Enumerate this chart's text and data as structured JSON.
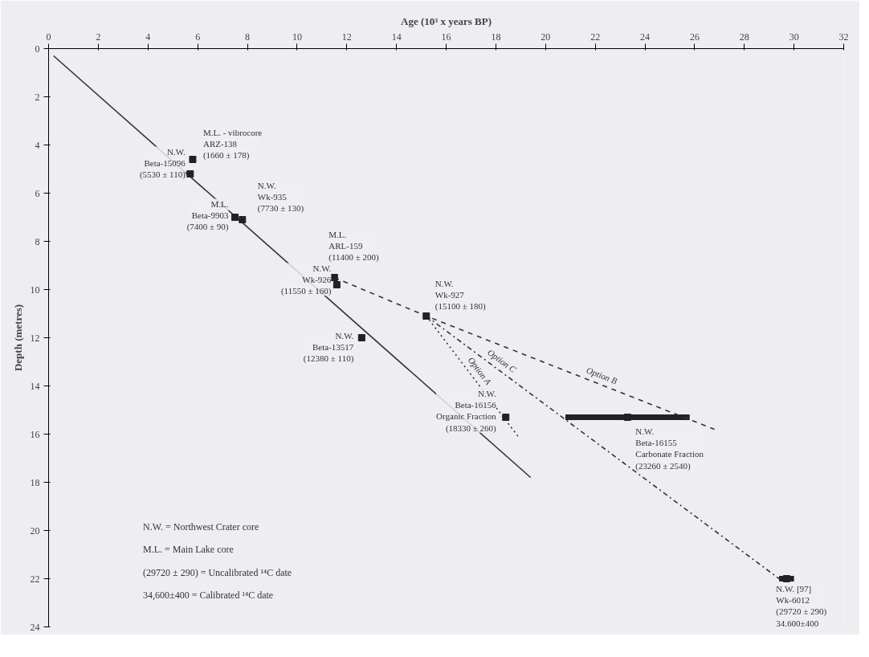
{
  "chart_data": {
    "type": "scatter",
    "xlabel": "Age (10³ x years BP)",
    "ylabel": "Depth (metres)",
    "xlim": [
      0,
      32
    ],
    "xticks": [
      0,
      2,
      4,
      6,
      8,
      10,
      12,
      14,
      16,
      18,
      20,
      22,
      24,
      26,
      28,
      30,
      32
    ],
    "ylim": [
      24,
      0
    ],
    "yticks": [
      0,
      2,
      4,
      6,
      8,
      10,
      12,
      14,
      16,
      18,
      20,
      22,
      24
    ],
    "series": [
      {
        "type": "line",
        "line_style": "solid",
        "color": "#333333",
        "x": [
          0.2,
          19.4
        ],
        "values": [
          0.3,
          17.8
        ]
      },
      {
        "name": "Option A",
        "type": "line",
        "line_style": "dotted",
        "color": "#333333",
        "x": [
          15.2,
          18.9
        ],
        "values": [
          11.1,
          16.1
        ]
      },
      {
        "name": "Option B",
        "type": "line",
        "line_style": "dashed",
        "color": "#333333",
        "x": [
          11.5,
          15.2,
          26.8
        ],
        "values": [
          9.5,
          11.1,
          15.8
        ]
      },
      {
        "name": "Option C",
        "type": "line",
        "line_style": "dashdot",
        "color": "#333333",
        "x": [
          15.2,
          29.4
        ],
        "values": [
          11.1,
          22.0
        ]
      },
      {
        "marker": "square",
        "color": "#222222",
        "x": [
          5.8,
          5.7,
          7.5,
          7.8,
          11.5,
          11.6,
          15.2,
          12.6,
          18.4,
          23.3,
          29.7
        ],
        "values": [
          4.6,
          5.2,
          7.0,
          7.1,
          9.5,
          9.8,
          11.1,
          12.0,
          15.3,
          15.3,
          22.0
        ],
        "xerrors": [
          null,
          null,
          null,
          null,
          null,
          null,
          null,
          null,
          null,
          2.5,
          0.3
        ]
      }
    ],
    "annotations": [
      {
        "text": "M.L. - vibrocore\nARZ-138\n(1660 ± 178)",
        "x": 5.8,
        "y": 4.6
      },
      {
        "text": "N.W.\nBeta-15096\n(5530 ± 110)",
        "x": 5.7,
        "y": 5.2
      },
      {
        "text": "M.L.\nBeta-9903\n(7400 ± 90)",
        "x": 7.5,
        "y": 7.0
      },
      {
        "text": "N.W.\nWk-935\n(7730 ± 130)",
        "x": 7.8,
        "y": 7.1
      },
      {
        "text": "M.L.\nARL-159\n(11400 ± 200)",
        "x": 11.5,
        "y": 9.5
      },
      {
        "text": "N.W.\nWk-926\n(11550 ± 160)",
        "x": 11.6,
        "y": 9.8
      },
      {
        "text": "N.W.\nWk-927\n(15100 ± 180)",
        "x": 15.2,
        "y": 11.1
      },
      {
        "text": "N.W.\nBeta-13517\n(12380 ± 110)",
        "x": 12.6,
        "y": 12.0
      },
      {
        "text": "N.W.\nBeta-16156\nOrganic Fraction\n(18330 ± 260)",
        "x": 18.4,
        "y": 15.3
      },
      {
        "text": "N.W.\nBeta-16155\nCarbonate Fraction\n(23260 ± 2540)",
        "x": 23.3,
        "y": 15.3
      },
      {
        "text": "N.W. [97]\nWk-6012\n(29720 ± 290)\n34,600±400",
        "x": 29.7,
        "y": 22.0
      },
      "N.W. = Northwest Crater core",
      "M.L. = Main Lake core",
      "(29720 ± 290) = Uncalibrated ¹⁴C date",
      "34,600±400 = Calibrated ¹⁴C date"
    ]
  }
}
